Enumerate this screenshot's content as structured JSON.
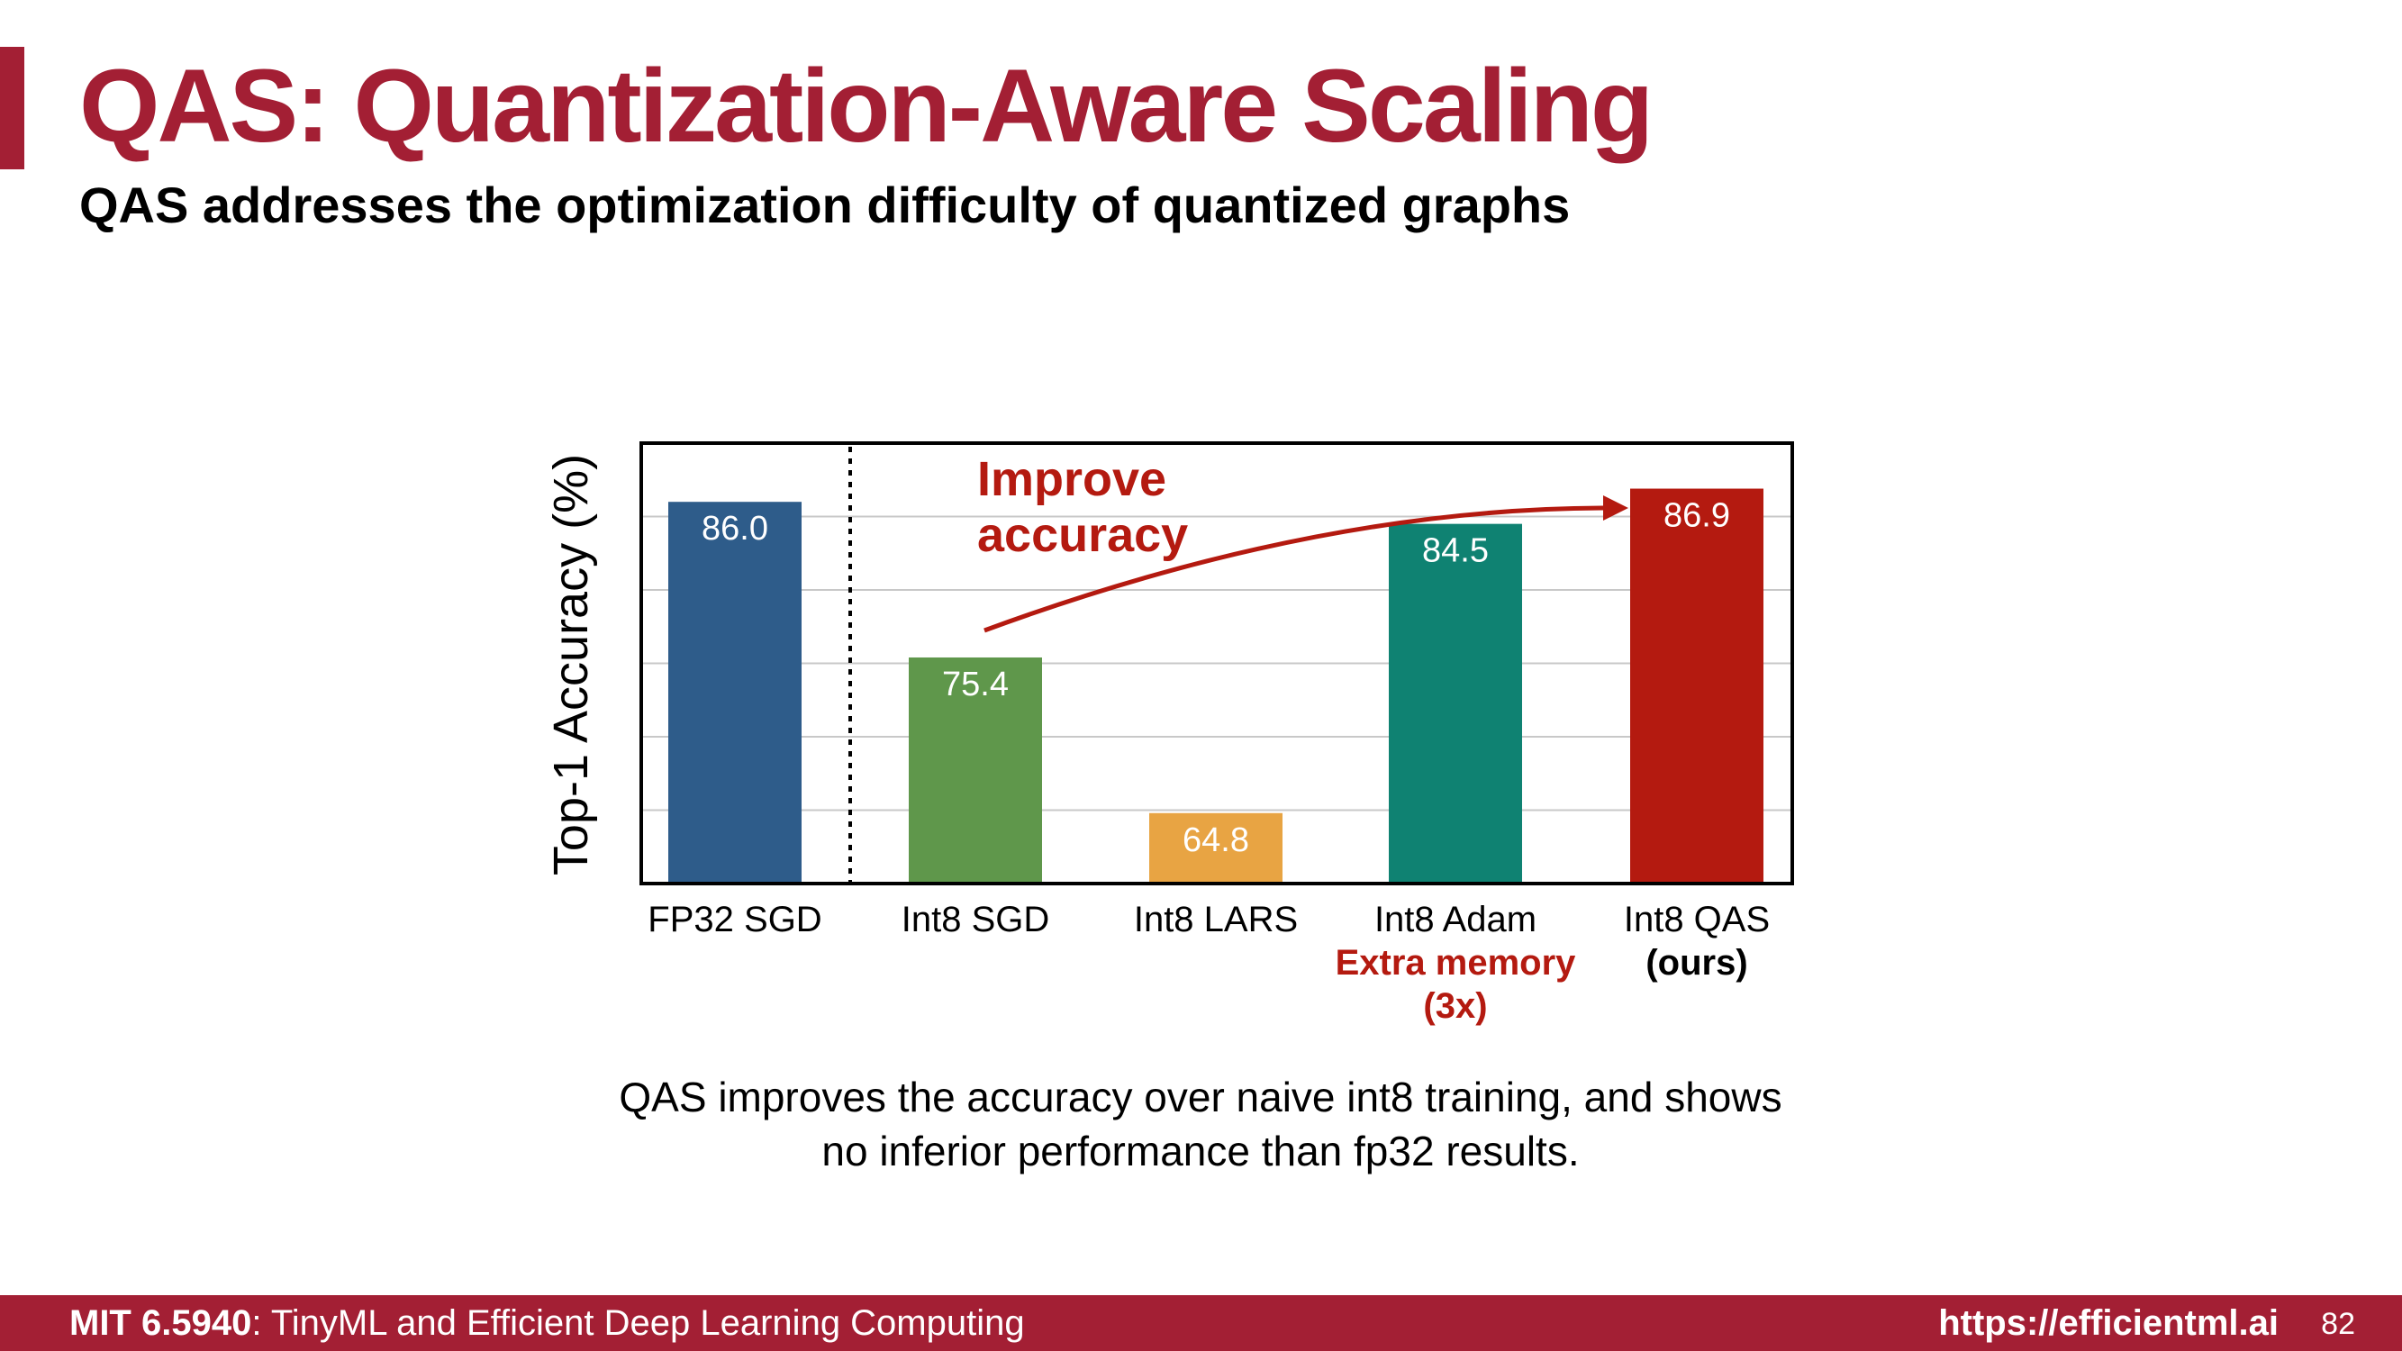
{
  "slide": {
    "title": "QAS: Quantization-Aware Scaling",
    "subtitle": "QAS addresses the optimization difficulty of quantized graphs",
    "caption_lines": [
      "QAS improves the accuracy over naive int8 training, and shows",
      "no inferior performance than fp32 results."
    ]
  },
  "footer": {
    "course_code": "MIT 6.5940",
    "course_name": ": TinyML and Efficient Deep Learning Computing",
    "url": "https://efficientml.ai",
    "page_number": "82"
  },
  "chart_data": {
    "type": "bar",
    "ylabel": "Top-1 Accuracy (%)",
    "ylim": [
      60,
      90
    ],
    "grid": true,
    "categories": [
      "FP32 SGD",
      "Int8 SGD",
      "Int8 LARS",
      "Int8 Adam",
      "Int8 QAS"
    ],
    "category_sublabels": [
      "",
      "",
      "",
      "Extra memory\n(3x)",
      "(ours)"
    ],
    "values": [
      86.0,
      75.4,
      64.8,
      84.5,
      86.9
    ],
    "value_labels": [
      "86.0",
      "75.4",
      "64.8",
      "84.5",
      "86.9"
    ],
    "colors": [
      "#2e5c8a",
      "#5f974b",
      "#e8a443",
      "#0f8272",
      "#b41a10"
    ],
    "annotation": "Improve\naccuracy",
    "annotation_color": "#b41a10",
    "separator_after_index": 0
  }
}
